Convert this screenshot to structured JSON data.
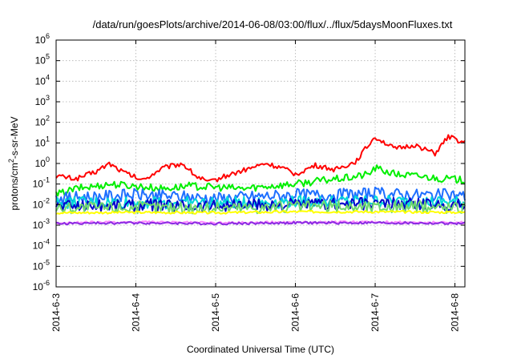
{
  "chart_data": {
    "type": "line",
    "title": "/data/run/goesPlots/archive/2014-06-08/03:00/flux/../flux/5daysMoonFluxes.txt",
    "xlabel": "Coordinated Universal Time (UTC)",
    "ylabel": {
      "prefix": "protons/cm",
      "sup": "2",
      "suffix": "-s-sr-MeV"
    },
    "y_scale": "log",
    "ylim_exp": [
      -6,
      6
    ],
    "y_ticks": [
      {
        "base": "10",
        "exp": "-6"
      },
      {
        "base": "10",
        "exp": "-5"
      },
      {
        "base": "10",
        "exp": "-4"
      },
      {
        "base": "10",
        "exp": "-3"
      },
      {
        "base": "10",
        "exp": "-2"
      },
      {
        "base": "10",
        "exp": "-1"
      },
      {
        "base": "10",
        "exp": "0"
      },
      {
        "base": "10",
        "exp": "1"
      },
      {
        "base": "10",
        "exp": "2"
      },
      {
        "base": "10",
        "exp": "3"
      },
      {
        "base": "10",
        "exp": "4"
      },
      {
        "base": "10",
        "exp": "5"
      },
      {
        "base": "10",
        "exp": "6"
      }
    ],
    "x_ticks": [
      "2014-6-3",
      "2014-6-4",
      "2014-6-5",
      "2014-6-6",
      "2014-6-7",
      "2014-6-8"
    ],
    "x_range_days": [
      "2014-06-03T00:00",
      "2014-06-08T03:00"
    ],
    "grid": true,
    "series": [
      {
        "color": "#ff0000",
        "x": [
          "2014-06-03T00:00",
          "2014-06-03T06:00",
          "2014-06-03T12:00",
          "2014-06-03T16:00",
          "2014-06-03T20:00",
          "2014-06-04T02:00",
          "2014-06-04T08:00",
          "2014-06-04T14:00",
          "2014-06-04T18:00",
          "2014-06-04T22:00",
          "2014-06-05T03:00",
          "2014-06-05T09:00",
          "2014-06-05T15:00",
          "2014-06-05T20:00",
          "2014-06-06T00:00",
          "2014-06-06T06:00",
          "2014-06-06T12:00",
          "2014-06-06T18:00",
          "2014-06-06T21:00",
          "2014-06-07T00:00",
          "2014-06-07T06:00",
          "2014-06-07T12:00",
          "2014-06-07T18:00",
          "2014-06-07T22:00",
          "2014-06-08T03:00"
        ],
        "y": [
          0.25,
          0.18,
          0.4,
          1.0,
          0.4,
          0.15,
          0.6,
          1.0,
          0.25,
          0.12,
          0.25,
          0.5,
          1.0,
          0.6,
          0.3,
          0.8,
          0.5,
          1.2,
          5.0,
          20,
          5,
          8,
          3,
          20,
          10
        ]
      },
      {
        "color": "#00ee00",
        "x": [
          "2014-06-03T00:00",
          "2014-06-03T06:00",
          "2014-06-03T12:00",
          "2014-06-03T16:00",
          "2014-06-04T00:00",
          "2014-06-04T08:00",
          "2014-06-04T16:00",
          "2014-06-05T00:00",
          "2014-06-05T08:00",
          "2014-06-05T16:00",
          "2014-06-06T00:00",
          "2014-06-06T08:00",
          "2014-06-06T16:00",
          "2014-06-06T22:00",
          "2014-06-07T00:00",
          "2014-06-07T06:00",
          "2014-06-07T12:00",
          "2014-06-07T18:00",
          "2014-06-08T03:00"
        ],
        "y": [
          0.03,
          0.06,
          0.08,
          0.1,
          0.08,
          0.06,
          0.08,
          0.07,
          0.06,
          0.08,
          0.1,
          0.15,
          0.2,
          0.3,
          0.6,
          0.3,
          0.25,
          0.2,
          0.15
        ]
      },
      {
        "color": "#1e6fff",
        "x": [
          "2014-06-03T00:00",
          "2014-06-03T12:00",
          "2014-06-04T00:00",
          "2014-06-04T12:00",
          "2014-06-05T00:00",
          "2014-06-05T12:00",
          "2014-06-06T00:00",
          "2014-06-06T12:00",
          "2014-06-07T00:00",
          "2014-06-07T12:00",
          "2014-06-08T00:00",
          "2014-06-08T03:00"
        ],
        "y": [
          0.02,
          0.025,
          0.03,
          0.025,
          0.02,
          0.025,
          0.03,
          0.03,
          0.035,
          0.03,
          0.03,
          0.025
        ]
      },
      {
        "color": "#00d8d8",
        "x": [
          "2014-06-03T00:00",
          "2014-06-04T00:00",
          "2014-06-05T00:00",
          "2014-06-06T00:00",
          "2014-06-07T00:00",
          "2014-06-08T03:00"
        ],
        "y": [
          0.012,
          0.013,
          0.012,
          0.014,
          0.015,
          0.013
        ]
      },
      {
        "color": "#0000cc",
        "x": [
          "2014-06-03T00:00",
          "2014-06-04T00:00",
          "2014-06-05T00:00",
          "2014-06-06T00:00",
          "2014-06-07T00:00",
          "2014-06-08T03:00"
        ],
        "y": [
          0.009,
          0.0095,
          0.009,
          0.01,
          0.011,
          0.01
        ]
      },
      {
        "color": "#6fd86f",
        "x": [
          "2014-06-03T00:00",
          "2014-06-04T00:00",
          "2014-06-05T00:00",
          "2014-06-06T00:00",
          "2014-06-07T00:00",
          "2014-06-08T03:00"
        ],
        "y": [
          0.007,
          0.0075,
          0.007,
          0.008,
          0.008,
          0.0075
        ]
      },
      {
        "color": "#ffff00",
        "x": [
          "2014-06-03T00:00",
          "2014-06-04T00:00",
          "2014-06-05T00:00",
          "2014-06-06T00:00",
          "2014-06-07T00:00",
          "2014-06-08T03:00"
        ],
        "y": [
          0.004,
          0.0042,
          0.004,
          0.0045,
          0.0045,
          0.0042
        ]
      },
      {
        "color": "#ff88ff",
        "x": [
          "2014-06-03T00:00",
          "2014-06-04T00:00",
          "2014-06-05T00:00",
          "2014-06-06T00:00",
          "2014-06-07T00:00",
          "2014-06-08T03:00"
        ],
        "y": [
          0.0013,
          0.0014,
          0.0013,
          0.0014,
          0.0014,
          0.0013
        ]
      },
      {
        "color": "#8a2be2",
        "x": [
          "2014-06-03T00:00",
          "2014-06-04T00:00",
          "2014-06-05T00:00",
          "2014-06-06T00:00",
          "2014-06-07T00:00",
          "2014-06-08T03:00"
        ],
        "y": [
          0.0012,
          0.0013,
          0.0012,
          0.0013,
          0.0013,
          0.0012
        ]
      }
    ]
  }
}
